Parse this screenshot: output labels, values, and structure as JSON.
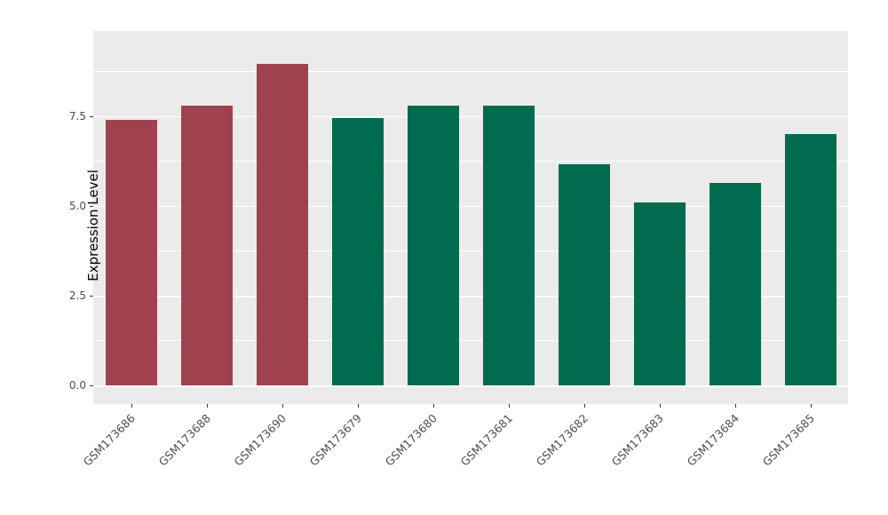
{
  "chart_data": {
    "type": "bar",
    "categories": [
      "GSM173686",
      "GSM173688",
      "GSM173690",
      "GSM173679",
      "GSM173680",
      "GSM173681",
      "GSM173682",
      "GSM173683",
      "GSM173684",
      "GSM173685"
    ],
    "values": [
      7.4,
      7.8,
      8.95,
      7.45,
      7.8,
      7.8,
      6.15,
      5.1,
      5.65,
      7.0
    ],
    "groups": [
      "groupA",
      "groupA",
      "groupA",
      "groupB",
      "groupB",
      "groupB",
      "groupB",
      "groupB",
      "groupB",
      "groupB"
    ],
    "colors": {
      "groupA": "#A0424E",
      "groupB": "#006B4E"
    },
    "title": "",
    "xlabel": "",
    "ylabel": "Expression Level",
    "yticks": [
      0,
      2.5,
      5,
      7.5
    ],
    "ytick_labels": [
      "0.0",
      "2.5",
      "5.0",
      "7.5"
    ],
    "minor_ticks": [
      1.25,
      3.75,
      6.25,
      8.75
    ],
    "ylim": [
      0,
      9.35
    ],
    "grid": "on",
    "legend": "none",
    "panel_bg": "#EBEBEB",
    "grid_color": "#FFFFFF"
  }
}
